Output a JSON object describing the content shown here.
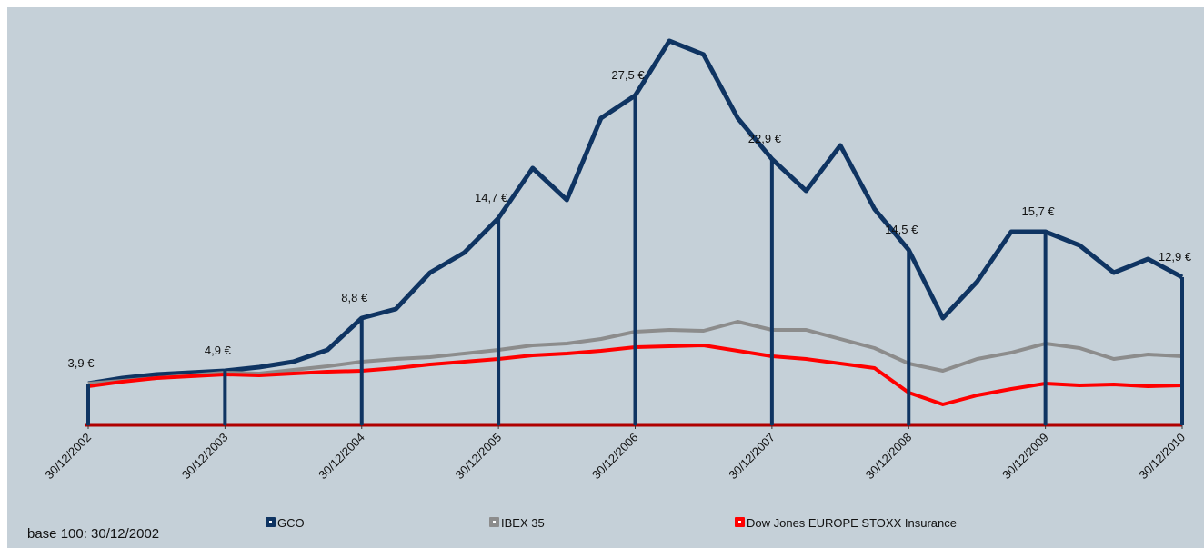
{
  "chart_data": {
    "type": "line",
    "note": "base 100: 30/12/2002",
    "x": [
      2003,
      2003.25,
      2003.5,
      2003.75,
      2004,
      2004.25,
      2004.5,
      2004.75,
      2005,
      2005.25,
      2005.5,
      2005.75,
      2006,
      2006.25,
      2006.5,
      2006.75,
      2007,
      2007.25,
      2007.5,
      2007.75,
      2008,
      2008.25,
      2008.5,
      2008.75,
      2009,
      2009.25,
      2009.5,
      2009.75,
      2010,
      2010.25,
      2010.5,
      2010.75,
      2011
    ],
    "series": [
      {
        "name": "GCO",
        "color": "#0f3462",
        "values": [
          92,
          104,
          112,
          116,
          120,
          128,
          140,
          166,
          236,
          256,
          336,
          380,
          456,
          566,
          496,
          676,
          726,
          846,
          816,
          676,
          586,
          516,
          616,
          476,
          386,
          236,
          316,
          426,
          426,
          396,
          336,
          366,
          326
        ]
      },
      {
        "name": "IBEX 35",
        "color": "#8c8c8c",
        "values": [
          92,
          98,
          104,
          110,
          116,
          114,
          122,
          130,
          140,
          146,
          150,
          158,
          166,
          176,
          180,
          190,
          206,
          210,
          208,
          228,
          210,
          210,
          190,
          170,
          136,
          120,
          146,
          160,
          180,
          170,
          146,
          156,
          152
        ]
      },
      {
        "name": "Dow Jones EUROPE STOXX Insurance",
        "color": "#ff0000",
        "values": [
          86,
          96,
          104,
          108,
          112,
          110,
          114,
          118,
          120,
          126,
          134,
          140,
          146,
          154,
          158,
          164,
          172,
          174,
          176,
          164,
          152,
          146,
          136,
          126,
          72,
          46,
          66,
          80,
          92,
          88,
          90,
          86,
          88
        ]
      }
    ],
    "annotations": [
      {
        "x": 2003,
        "text": "3,9 €"
      },
      {
        "x": 2004,
        "text": "4,9 €"
      },
      {
        "x": 2005,
        "text": "8,8 €"
      },
      {
        "x": 2006,
        "text": "14,7 €"
      },
      {
        "x": 2007,
        "text": "27,5 €"
      },
      {
        "x": 2008,
        "text": "22,9 €"
      },
      {
        "x": 2009,
        "text": "14,5 €"
      },
      {
        "x": 2010,
        "text": "15,7 €"
      },
      {
        "x": 2011,
        "text": "12,9 €"
      }
    ],
    "xlim": [
      2003,
      2011
    ],
    "xticks": [
      {
        "value": 2003,
        "label": "30/12/2002"
      },
      {
        "value": 2004,
        "label": "30/12/2003"
      },
      {
        "value": 2005,
        "label": "30/12/2004"
      },
      {
        "value": 2006,
        "label": "30/12/2005"
      },
      {
        "value": 2007,
        "label": "30/12/2006"
      },
      {
        "value": 2008,
        "label": "30/12/2007"
      },
      {
        "value": 2009,
        "label": "30/12/2008"
      },
      {
        "value": 2010,
        "label": "30/12/2009"
      },
      {
        "value": 2011,
        "label": "30/12/2010"
      }
    ],
    "ylim": [
      0,
      900
    ]
  }
}
